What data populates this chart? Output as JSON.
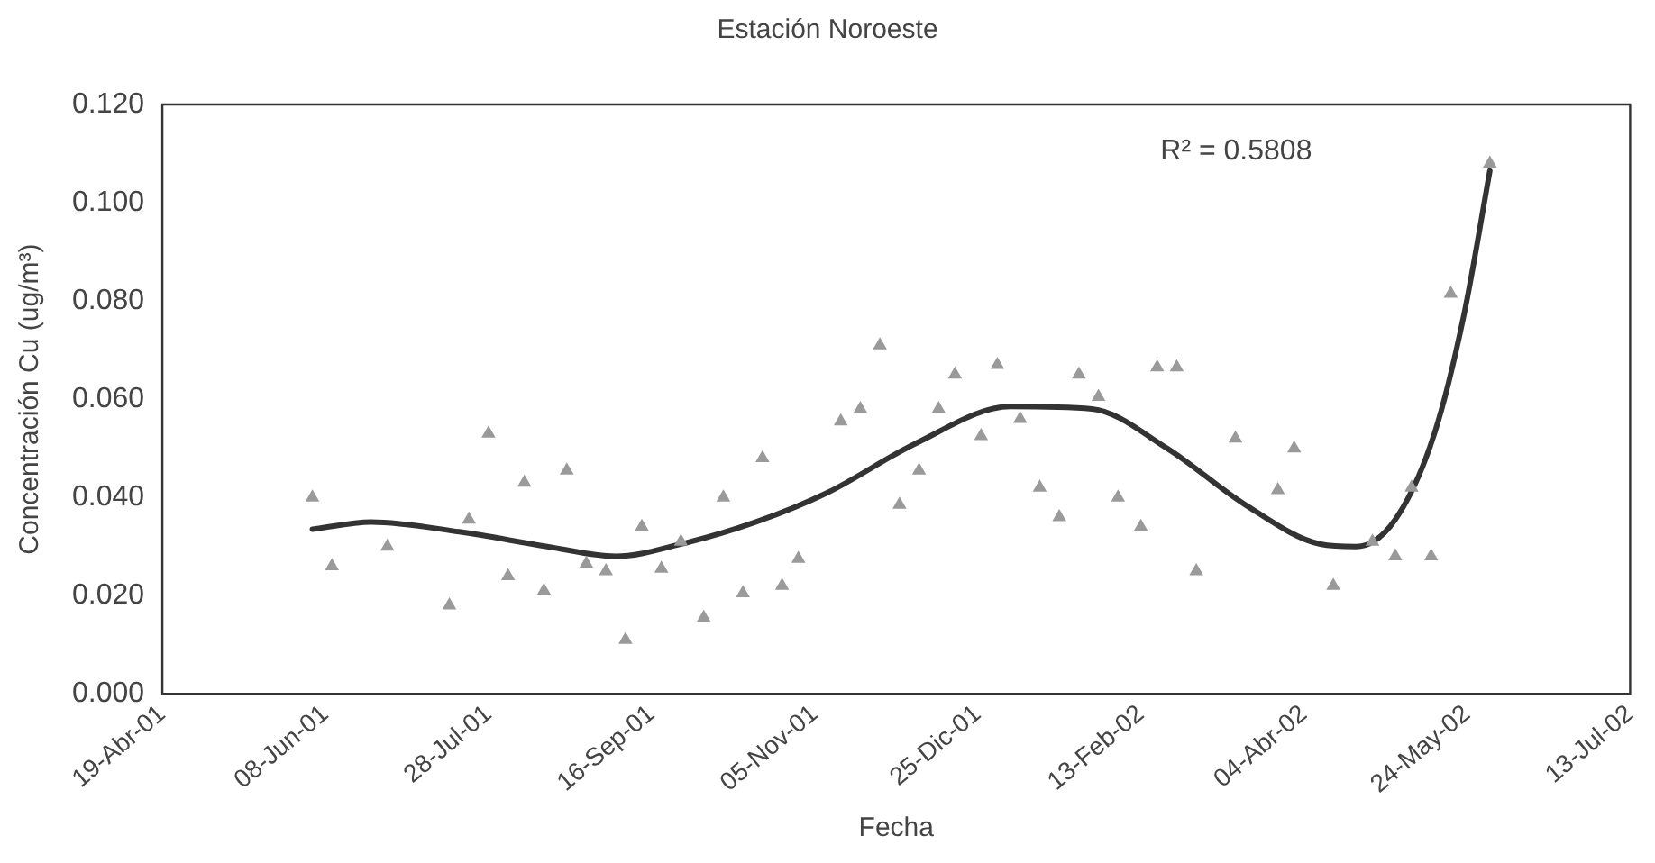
{
  "chart_data": {
    "type": "scatter",
    "title": "Estación Noroeste",
    "xlabel": "Fecha",
    "ylabel": "Concentración Cu (ug/m³)",
    "annotations": [
      "R² = 0.5808"
    ],
    "xlim": [
      "2001-04-19",
      "2002-07-13"
    ],
    "xticks": [
      {
        "value": "2001-04-19",
        "label": "19-Abr-01"
      },
      {
        "value": "2001-06-08",
        "label": "08-Jun-01"
      },
      {
        "value": "2001-07-28",
        "label": "28-Jul-01"
      },
      {
        "value": "2001-09-16",
        "label": "16-Sep-01"
      },
      {
        "value": "2001-11-05",
        "label": "05-Nov-01"
      },
      {
        "value": "2001-12-25",
        "label": "25-Dic-01"
      },
      {
        "value": "2002-02-13",
        "label": "13-Feb-02"
      },
      {
        "value": "2002-04-04",
        "label": "04-Abr-02"
      },
      {
        "value": "2002-05-24",
        "label": "24-May-02"
      },
      {
        "value": "2002-07-13",
        "label": "13-Jul-02"
      }
    ],
    "ylim": [
      0,
      0.12
    ],
    "yticks": [
      {
        "value": 0,
        "label": "0.000"
      },
      {
        "value": 0.02,
        "label": "0.020"
      },
      {
        "value": 0.04,
        "label": "0.040"
      },
      {
        "value": 0.06,
        "label": "0.060"
      },
      {
        "value": 0.08,
        "label": "0.080"
      },
      {
        "value": 0.1,
        "label": "0.100"
      },
      {
        "value": 0.12,
        "label": "0.120"
      }
    ],
    "grid": false,
    "legend": false,
    "marker": "triangle",
    "series": [
      {
        "type": "scatter",
        "color": "#9a9a9a",
        "x": [
          "2001-06-04",
          "2001-06-10",
          "2001-06-27",
          "2001-07-16",
          "2001-07-22",
          "2001-07-28",
          "2001-08-03",
          "2001-08-08",
          "2001-08-14",
          "2001-08-21",
          "2001-08-27",
          "2001-09-02",
          "2001-09-08",
          "2001-09-13",
          "2001-09-19",
          "2001-09-25",
          "2001-10-02",
          "2001-10-08",
          "2001-10-14",
          "2001-10-20",
          "2001-10-26",
          "2001-10-31",
          "2001-11-13",
          "2001-11-19",
          "2001-11-25",
          "2001-12-01",
          "2001-12-07",
          "2001-12-13",
          "2001-12-18",
          "2001-12-26",
          "2001-12-31",
          "2002-01-07",
          "2002-01-13",
          "2002-01-19",
          "2002-01-25",
          "2002-01-31",
          "2002-02-06",
          "2002-02-13",
          "2002-02-18",
          "2002-02-24",
          "2002-03-02",
          "2002-03-14",
          "2002-03-27",
          "2002-04-01",
          "2002-04-13",
          "2002-04-25",
          "2002-05-02",
          "2002-05-07",
          "2002-05-13",
          "2002-05-19",
          "2002-05-31"
        ],
        "values": [
          0.04,
          0.026,
          0.03,
          0.018,
          0.0355,
          0.053,
          0.024,
          0.043,
          0.021,
          0.0455,
          0.0265,
          0.025,
          0.011,
          0.034,
          0.0255,
          0.031,
          0.0155,
          0.04,
          0.0205,
          0.048,
          0.022,
          0.0275,
          0.0555,
          0.058,
          0.071,
          0.0385,
          0.0455,
          0.058,
          0.065,
          0.0525,
          0.067,
          0.056,
          0.042,
          0.036,
          0.065,
          0.0605,
          0.04,
          0.034,
          0.0665,
          0.0665,
          0.025,
          0.052,
          0.0415,
          0.05,
          0.022,
          0.031,
          0.028,
          0.042,
          0.028,
          0.0815,
          0.108
        ]
      },
      {
        "type": "line",
        "color": "#333333",
        "marker": "none",
        "x": [
          "2001-06-04",
          "2001-06-22",
          "2001-07-19",
          "2001-08-15",
          "2001-09-05",
          "2001-09-25",
          "2001-10-18",
          "2001-11-09",
          "2001-12-06",
          "2002-01-04",
          "2002-01-29",
          "2002-02-21",
          "2002-03-17",
          "2002-04-09",
          "2002-04-20",
          "2002-05-02",
          "2002-05-14",
          "2002-05-23",
          "2002-05-31"
        ],
        "values": [
          0.0335,
          0.035,
          0.033,
          0.03,
          0.028,
          0.0305,
          0.035,
          0.041,
          0.051,
          0.0585,
          0.058,
          0.05,
          0.0385,
          0.0305,
          0.03,
          0.0355,
          0.053,
          0.077,
          0.1065
        ]
      }
    ]
  }
}
